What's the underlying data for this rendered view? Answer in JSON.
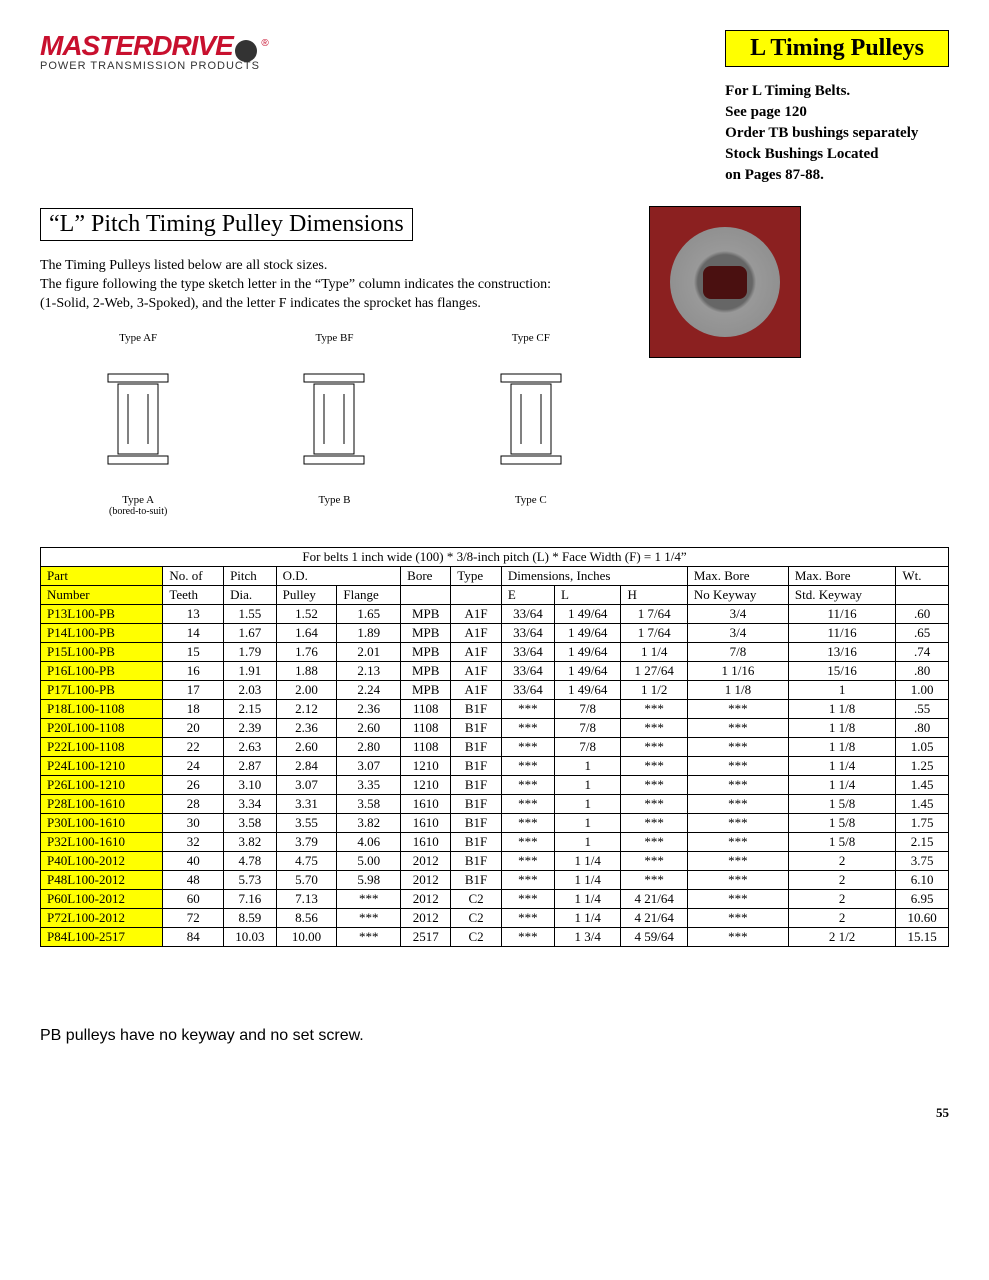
{
  "logo": {
    "brand": "MASTERDRIVE",
    "tagline": "POWER TRANSMISSION PRODUCTS"
  },
  "header": {
    "badge": "L Timing Pulleys",
    "notes": [
      "For L Timing Belts.",
      "See page 120",
      "Order TB bushings separately",
      "Stock Bushings Located",
      "on Pages 87-88."
    ]
  },
  "section": {
    "title": "“L” Pitch Timing Pulley Dimensions",
    "intro": [
      "The Timing Pulleys listed below are all stock sizes.",
      "The figure following the type sketch letter in the “Type” column indicates the construction:",
      "(1-Solid, 2-Web, 3-Spoked), and the letter F indicates the sprocket has flanges."
    ]
  },
  "diagrams": [
    {
      "top": "Type AF",
      "bottom": "Type A",
      "sub": "(bored-to-suit)"
    },
    {
      "top": "Type BF",
      "bottom": "Type B",
      "sub": ""
    },
    {
      "top": "Type CF",
      "bottom": "Type C",
      "sub": ""
    }
  ],
  "table": {
    "caption": "For belts 1 inch wide (100) * 3/8-inch pitch (L) * Face Width (F) = 1 1/4”",
    "head": {
      "r1": [
        "Part",
        "No. of",
        "Pitch",
        "O.D.",
        "Bore",
        "Type",
        "Dimensions, Inches",
        "Max. Bore",
        "Max. Bore",
        "Wt."
      ],
      "r2": [
        "Number",
        "Teeth",
        "Dia.",
        "Pulley",
        "Flange",
        "",
        "",
        "E",
        "L",
        "H",
        "No Keyway",
        "Std. Keyway",
        ""
      ]
    },
    "rows": [
      [
        "P13L100-PB",
        "13",
        "1.55",
        "1.52",
        "1.65",
        "MPB",
        "A1F",
        "33/64",
        "1 49/64",
        "1 7/64",
        "3/4",
        "11/16",
        ".60"
      ],
      [
        "P14L100-PB",
        "14",
        "1.67",
        "1.64",
        "1.89",
        "MPB",
        "A1F",
        "33/64",
        "1 49/64",
        "1 7/64",
        "3/4",
        "11/16",
        ".65"
      ],
      [
        "P15L100-PB",
        "15",
        "1.79",
        "1.76",
        "2.01",
        "MPB",
        "A1F",
        "33/64",
        "1 49/64",
        "1 1/4",
        "7/8",
        "13/16",
        ".74"
      ],
      [
        "P16L100-PB",
        "16",
        "1.91",
        "1.88",
        "2.13",
        "MPB",
        "A1F",
        "33/64",
        "1 49/64",
        "1 27/64",
        "1 1/16",
        "15/16",
        ".80"
      ],
      [
        "P17L100-PB",
        "17",
        "2.03",
        "2.00",
        "2.24",
        "MPB",
        "A1F",
        "33/64",
        "1 49/64",
        "1 1/2",
        "1 1/8",
        "1",
        "1.00"
      ],
      [
        "P18L100-1108",
        "18",
        "2.15",
        "2.12",
        "2.36",
        "1108",
        "B1F",
        "***",
        "7/8",
        "***",
        "***",
        "1 1/8",
        ".55"
      ],
      [
        "P20L100-1108",
        "20",
        "2.39",
        "2.36",
        "2.60",
        "1108",
        "B1F",
        "***",
        "7/8",
        "***",
        "***",
        "1 1/8",
        ".80"
      ],
      [
        "P22L100-1108",
        "22",
        "2.63",
        "2.60",
        "2.80",
        "1108",
        "B1F",
        "***",
        "7/8",
        "***",
        "***",
        "1 1/8",
        "1.05"
      ],
      [
        "P24L100-1210",
        "24",
        "2.87",
        "2.84",
        "3.07",
        "1210",
        "B1F",
        "***",
        "1",
        "***",
        "***",
        "1 1/4",
        "1.25"
      ],
      [
        "P26L100-1210",
        "26",
        "3.10",
        "3.07",
        "3.35",
        "1210",
        "B1F",
        "***",
        "1",
        "***",
        "***",
        "1 1/4",
        "1.45"
      ],
      [
        "P28L100-1610",
        "28",
        "3.34",
        "3.31",
        "3.58",
        "1610",
        "B1F",
        "***",
        "1",
        "***",
        "***",
        "1 5/8",
        "1.45"
      ],
      [
        "P30L100-1610",
        "30",
        "3.58",
        "3.55",
        "3.82",
        "1610",
        "B1F",
        "***",
        "1",
        "***",
        "***",
        "1 5/8",
        "1.75"
      ],
      [
        "P32L100-1610",
        "32",
        "3.82",
        "3.79",
        "4.06",
        "1610",
        "B1F",
        "***",
        "1",
        "***",
        "***",
        "1 5/8",
        "2.15"
      ],
      [
        "P40L100-2012",
        "40",
        "4.78",
        "4.75",
        "5.00",
        "2012",
        "B1F",
        "***",
        "1 1/4",
        "***",
        "***",
        "2",
        "3.75"
      ],
      [
        "P48L100-2012",
        "48",
        "5.73",
        "5.70",
        "5.98",
        "2012",
        "B1F",
        "***",
        "1 1/4",
        "***",
        "***",
        "2",
        "6.10"
      ],
      [
        "P60L100-2012",
        "60",
        "7.16",
        "7.13",
        "***",
        "2012",
        "C2",
        "***",
        "1 1/4",
        "4 21/64",
        "***",
        "2",
        "6.95"
      ],
      [
        "P72L100-2012",
        "72",
        "8.59",
        "8.56",
        "***",
        "2012",
        "C2",
        "***",
        "1 1/4",
        "4 21/64",
        "***",
        "2",
        "10.60"
      ],
      [
        "P84L100-2517",
        "84",
        "10.03",
        "10.00",
        "***",
        "2517",
        "C2",
        "***",
        "1 3/4",
        "4 59/64",
        "***",
        "2 1/2",
        "15.15"
      ]
    ]
  },
  "footnote": "PB pulleys have no keyway and no set screw.",
  "pagenum": "55"
}
